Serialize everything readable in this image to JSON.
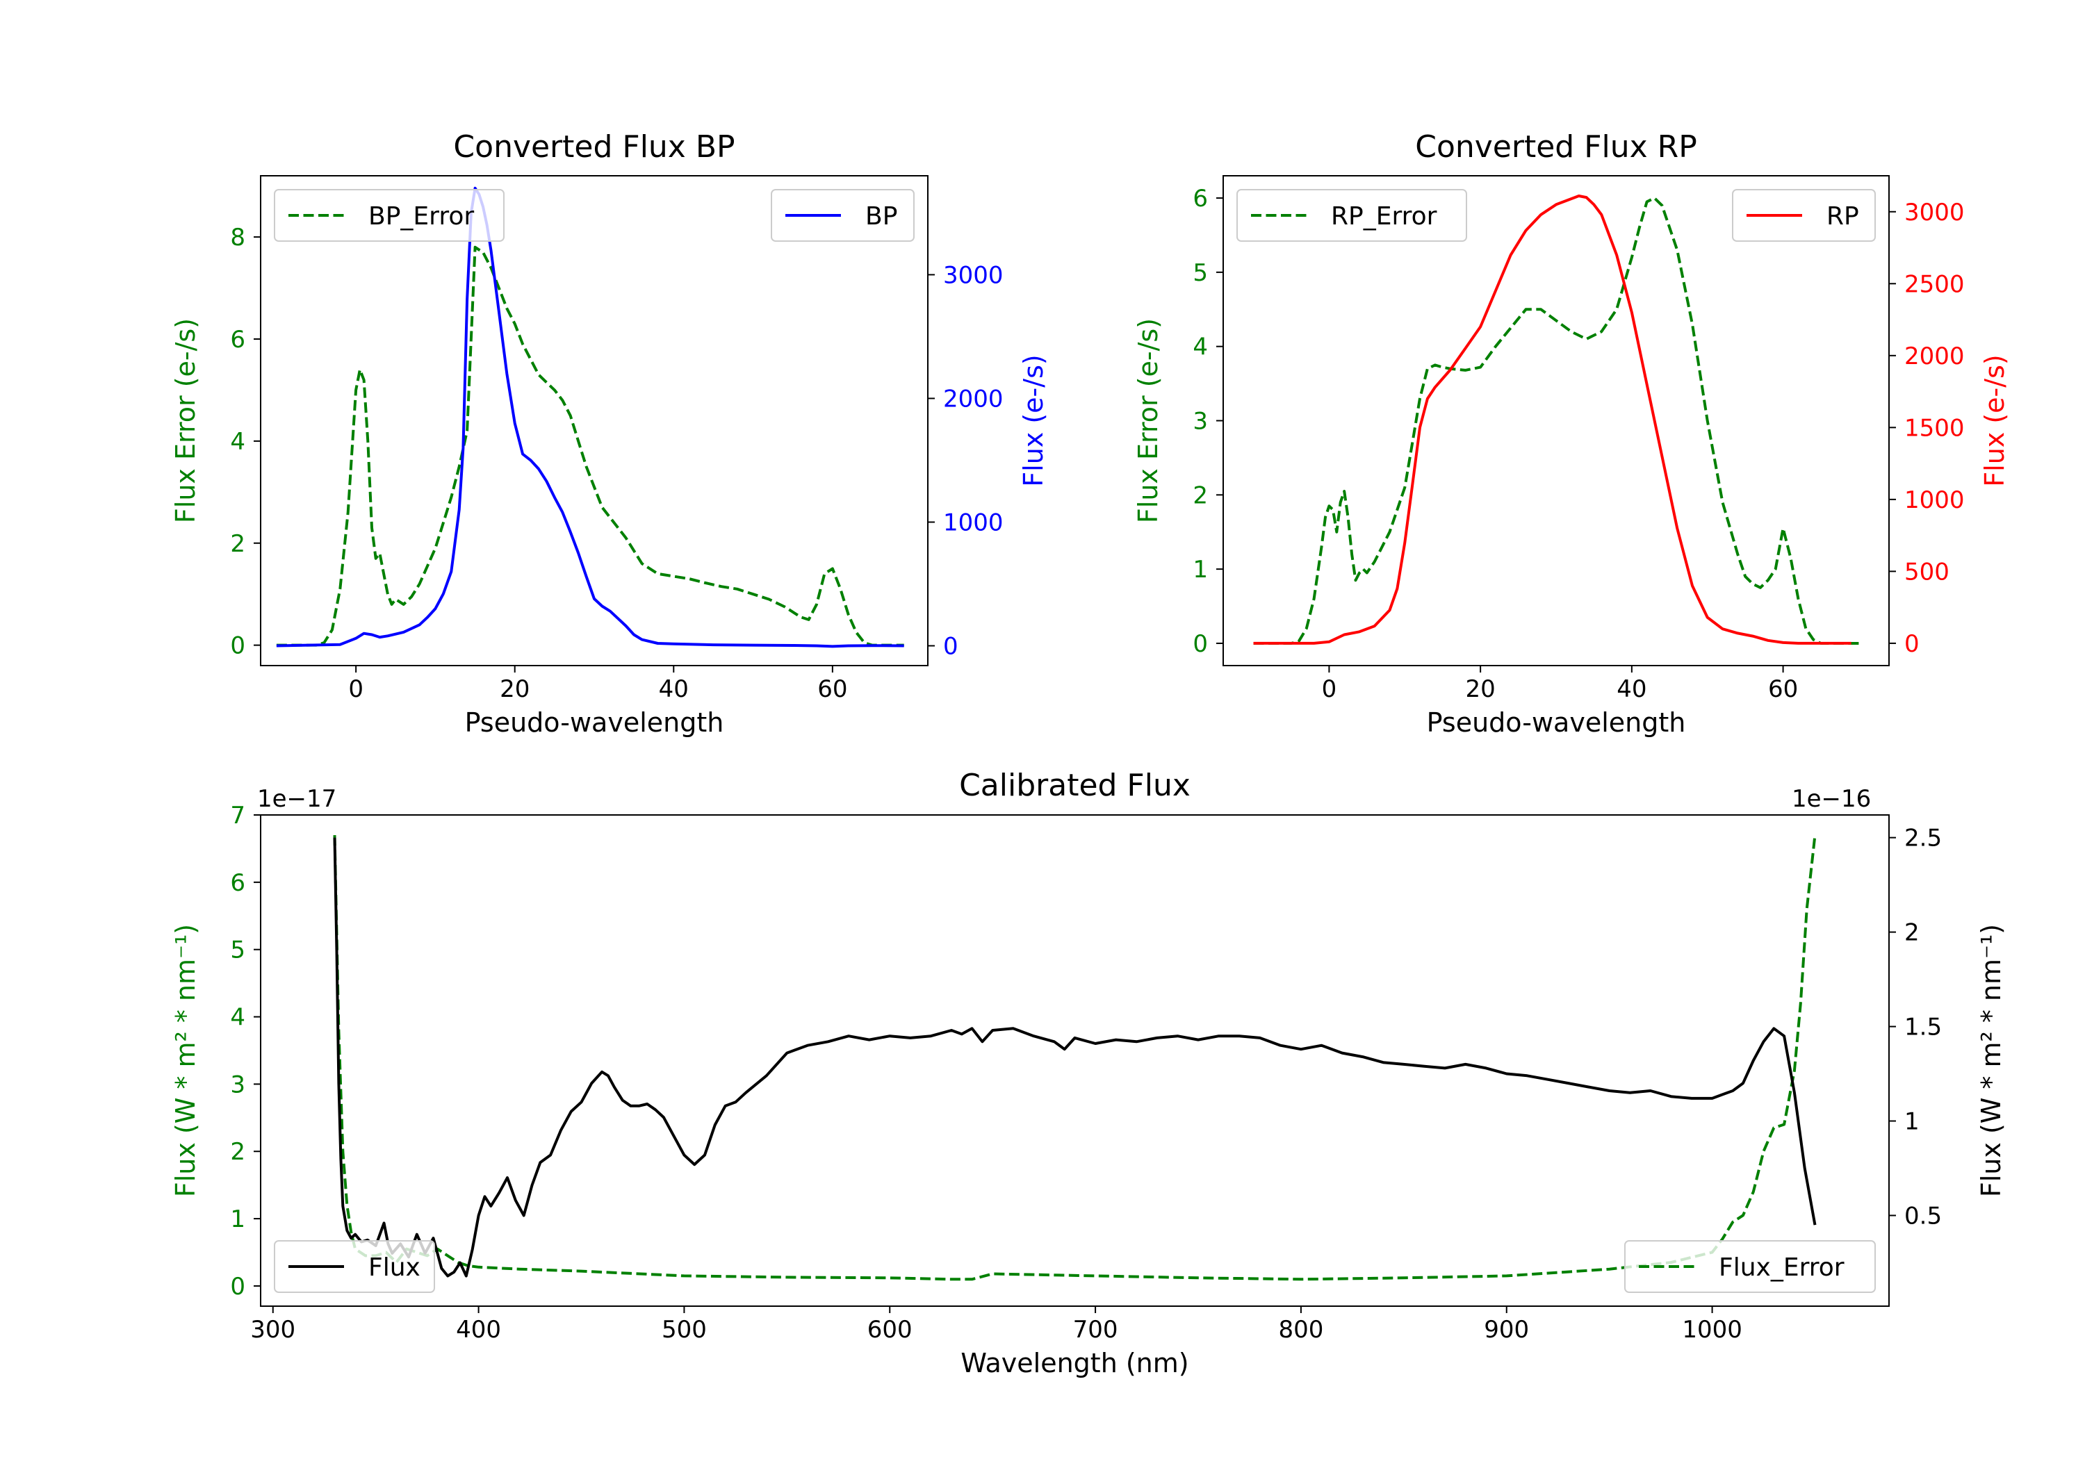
{
  "colors": {
    "error": "#008000",
    "bp": "#0000ff",
    "rp": "#ff0000",
    "flux": "#000000",
    "axis": "#000000"
  },
  "chart_data": [
    {
      "id": "bp",
      "type": "line",
      "title": "Converted Flux BP",
      "xlabel": "Pseudo-wavelength",
      "ylabel_left": "Flux Error (e-/s)",
      "ylabel_right": "Flux (e-/s)",
      "xlim": [
        -12,
        72
      ],
      "ylim_left": [
        -0.4,
        9.2
      ],
      "ylim_right": [
        -160,
        3800
      ],
      "xticks": [
        0,
        20,
        40,
        60
      ],
      "yticks_left": [
        0,
        2,
        4,
        6,
        8
      ],
      "yticks_right": [
        0,
        1000,
        2000,
        3000
      ],
      "legend_left": {
        "label": "BP_Error",
        "placement": "upper left"
      },
      "legend_right": {
        "label": "BP",
        "placement": "upper right"
      },
      "series": [
        {
          "name": "BP_Error",
          "axis": "left",
          "style": "dashed",
          "color_key": "error",
          "x": [
            -10,
            -5,
            -4,
            -3,
            -2,
            -1,
            0,
            0.5,
            1,
            1.5,
            2,
            2.5,
            3,
            3.5,
            4,
            4.5,
            5,
            5.5,
            6,
            7,
            8,
            10,
            11,
            12,
            13,
            14,
            15,
            16,
            17,
            18,
            19,
            20,
            21,
            22,
            23,
            24,
            25,
            26,
            27,
            28,
            29,
            30,
            31,
            32,
            34,
            36,
            38,
            40,
            42,
            44,
            46,
            48,
            50,
            52,
            54,
            56,
            57,
            58,
            59,
            60,
            61,
            62,
            63,
            64,
            65,
            66,
            67,
            68,
            69
          ],
          "y": [
            0,
            0,
            0.05,
            0.3,
            1.1,
            2.6,
            5.0,
            5.4,
            5.2,
            4.0,
            2.3,
            1.7,
            1.8,
            1.4,
            1.0,
            0.8,
            0.9,
            0.85,
            0.8,
            0.95,
            1.2,
            1.9,
            2.4,
            2.9,
            3.5,
            4.2,
            7.8,
            7.7,
            7.4,
            7.0,
            6.6,
            6.3,
            5.9,
            5.6,
            5.3,
            5.15,
            5.0,
            4.8,
            4.5,
            4.0,
            3.5,
            3.1,
            2.7,
            2.5,
            2.1,
            1.6,
            1.4,
            1.35,
            1.3,
            1.22,
            1.15,
            1.1,
            1.0,
            0.9,
            0.75,
            0.55,
            0.5,
            0.8,
            1.4,
            1.5,
            1.1,
            0.6,
            0.25,
            0.05,
            0,
            0,
            0,
            0,
            0
          ]
        },
        {
          "name": "BP",
          "axis": "right",
          "style": "solid",
          "color_key": "bp",
          "x": [
            -10,
            -2,
            0,
            1,
            2,
            3,
            4,
            6,
            8,
            9,
            10,
            11,
            12,
            13,
            13.5,
            14,
            14.5,
            15,
            15.5,
            16,
            16.5,
            17,
            18,
            19,
            20,
            21,
            22,
            23,
            24,
            25,
            26,
            27,
            28,
            29,
            30,
            31,
            32,
            33,
            34,
            35,
            36,
            38,
            40,
            45,
            50,
            55,
            58,
            60,
            62,
            65,
            69
          ],
          "y": [
            0,
            10,
            60,
            100,
            90,
            70,
            80,
            110,
            170,
            230,
            300,
            420,
            600,
            1100,
            1600,
            2800,
            3500,
            3700,
            3650,
            3550,
            3400,
            3200,
            2700,
            2200,
            1800,
            1550,
            1500,
            1430,
            1330,
            1200,
            1080,
            920,
            750,
            560,
            380,
            320,
            280,
            220,
            160,
            90,
            50,
            20,
            15,
            8,
            5,
            3,
            0,
            -5,
            0,
            2,
            0
          ]
        }
      ]
    },
    {
      "id": "rp",
      "type": "line",
      "title": "Converted Flux RP",
      "xlabel": "Pseudo-wavelength",
      "ylabel_left": "Flux Error (e-/s)",
      "ylabel_right": "Flux (e-/s)",
      "xlim": [
        -14,
        74
      ],
      "ylim_left": [
        -0.3,
        6.3
      ],
      "ylim_right": [
        -155,
        3250
      ],
      "xticks": [
        0,
        20,
        40,
        60
      ],
      "yticks_left": [
        0,
        1,
        2,
        3,
        4,
        5,
        6
      ],
      "yticks_right": [
        0,
        500,
        1000,
        1500,
        2000,
        2500,
        3000
      ],
      "legend_left": {
        "label": "RP_Error",
        "placement": "upper left"
      },
      "legend_right": {
        "label": "RP",
        "placement": "upper right"
      },
      "series": [
        {
          "name": "RP_Error",
          "axis": "left",
          "style": "dashed",
          "color_key": "error",
          "x": [
            -10,
            -5,
            -4,
            -3,
            -2,
            -1,
            -0.5,
            0,
            0.5,
            1,
            1.5,
            2,
            2.5,
            3,
            3.5,
            4,
            4.5,
            5,
            6,
            7,
            8,
            9,
            10,
            11,
            12,
            13,
            14,
            15,
            16,
            18,
            20,
            22,
            24,
            26,
            28,
            30,
            32,
            34,
            36,
            38,
            40,
            41,
            42,
            43,
            44,
            46,
            48,
            50,
            52,
            54,
            55,
            56,
            57,
            58,
            59,
            60,
            61,
            62,
            63,
            64,
            65,
            70
          ],
          "y": [
            0,
            0,
            0.03,
            0.2,
            0.6,
            1.3,
            1.7,
            1.85,
            1.8,
            1.5,
            1.9,
            2.05,
            1.7,
            1.2,
            0.85,
            0.95,
            1.0,
            0.95,
            1.1,
            1.3,
            1.5,
            1.8,
            2.1,
            2.7,
            3.3,
            3.7,
            3.75,
            3.72,
            3.7,
            3.68,
            3.72,
            4.0,
            4.25,
            4.5,
            4.5,
            4.35,
            4.2,
            4.1,
            4.2,
            4.5,
            5.2,
            5.6,
            5.95,
            6.0,
            5.9,
            5.3,
            4.3,
            3.0,
            1.9,
            1.2,
            0.9,
            0.8,
            0.75,
            0.85,
            1.0,
            1.55,
            1.15,
            0.6,
            0.2,
            0.05,
            0,
            0
          ]
        },
        {
          "name": "RP",
          "axis": "right",
          "style": "solid",
          "color_key": "rp",
          "x": [
            -10,
            -2,
            0,
            2,
            4,
            6,
            8,
            9,
            10,
            11,
            12,
            13,
            14,
            16,
            18,
            20,
            22,
            24,
            26,
            28,
            30,
            32,
            33,
            34,
            35,
            36,
            38,
            40,
            42,
            44,
            46,
            48,
            50,
            52,
            54,
            56,
            58,
            60,
            62,
            64,
            69
          ],
          "y": [
            0,
            0,
            10,
            60,
            80,
            120,
            230,
            380,
            700,
            1100,
            1500,
            1700,
            1780,
            1900,
            2050,
            2200,
            2450,
            2700,
            2870,
            2980,
            3050,
            3090,
            3110,
            3100,
            3050,
            2980,
            2700,
            2300,
            1800,
            1300,
            800,
            400,
            180,
            100,
            70,
            50,
            20,
            5,
            0,
            0,
            0
          ]
        }
      ]
    },
    {
      "id": "calibrated",
      "type": "line",
      "title": "Calibrated Flux",
      "xlabel": "Wavelength (nm)",
      "ylabel_left": "Flux (W * m² * nm⁻¹)",
      "ylabel_right": "Flux (W * m² * nm⁻¹)",
      "offset_left": "1e−17",
      "offset_right": "1e−16",
      "xlim": [
        294,
        1086
      ],
      "ylim_left": [
        -0.3,
        7.0
      ],
      "ylim_right": [
        0.02,
        2.62
      ],
      "xticks": [
        300,
        400,
        500,
        600,
        700,
        800,
        900,
        1000
      ],
      "yticks_left": [
        0,
        1,
        2,
        3,
        4,
        5,
        6,
        7
      ],
      "yticks_right": [
        0.5,
        1.0,
        1.5,
        2.0,
        2.5
      ],
      "legend_left": {
        "label": "Flux",
        "placement": "lower left"
      },
      "legend_right": {
        "label": "Flux_Error",
        "placement": "lower right"
      },
      "series": [
        {
          "name": "Flux_Error",
          "axis": "left",
          "style": "dashed",
          "color_key": "error",
          "x": [
            330,
            332,
            334,
            336,
            338,
            340,
            345,
            350,
            355,
            360,
            365,
            370,
            375,
            380,
            385,
            390,
            395,
            400,
            420,
            450,
            500,
            550,
            600,
            630,
            640,
            650,
            700,
            750,
            800,
            850,
            900,
            950,
            980,
            1000,
            1005,
            1010,
            1015,
            1020,
            1025,
            1030,
            1035,
            1040,
            1043,
            1046,
            1050
          ],
          "y": [
            6.7,
            3.8,
            2.0,
            1.2,
            0.8,
            0.55,
            0.45,
            0.45,
            0.5,
            0.35,
            0.55,
            0.5,
            0.45,
            0.55,
            0.45,
            0.35,
            0.3,
            0.28,
            0.25,
            0.22,
            0.15,
            0.13,
            0.12,
            0.1,
            0.1,
            0.18,
            0.15,
            0.12,
            0.1,
            0.12,
            0.15,
            0.25,
            0.35,
            0.5,
            0.7,
            0.95,
            1.05,
            1.4,
            2.0,
            2.35,
            2.4,
            3.2,
            4.2,
            5.6,
            6.7
          ]
        },
        {
          "name": "Flux",
          "axis": "right",
          "style": "solid",
          "color_key": "flux",
          "x": [
            330,
            331,
            332,
            333,
            334,
            336,
            338,
            340,
            343,
            346,
            350,
            352,
            354,
            356,
            358,
            362,
            366,
            370,
            374,
            378,
            382,
            385,
            388,
            391,
            394,
            397,
            400,
            403,
            406,
            410,
            414,
            418,
            422,
            426,
            430,
            435,
            440,
            445,
            450,
            455,
            460,
            463,
            466,
            470,
            474,
            478,
            482,
            486,
            490,
            495,
            500,
            505,
            510,
            515,
            520,
            525,
            530,
            540,
            550,
            560,
            570,
            580,
            590,
            600,
            610,
            620,
            630,
            635,
            640,
            645,
            650,
            660,
            670,
            680,
            685,
            690,
            700,
            710,
            720,
            730,
            740,
            750,
            760,
            770,
            780,
            790,
            800,
            810,
            820,
            830,
            840,
            850,
            860,
            870,
            880,
            890,
            900,
            910,
            920,
            930,
            940,
            950,
            960,
            970,
            980,
            990,
            1000,
            1005,
            1010,
            1015,
            1020,
            1025,
            1030,
            1035,
            1040,
            1045,
            1050
          ],
          "y": [
            2.5,
            1.9,
            1.2,
            0.8,
            0.55,
            0.42,
            0.38,
            0.4,
            0.36,
            0.37,
            0.34,
            0.4,
            0.46,
            0.35,
            0.3,
            0.35,
            0.28,
            0.4,
            0.3,
            0.38,
            0.22,
            0.18,
            0.2,
            0.25,
            0.18,
            0.32,
            0.5,
            0.6,
            0.55,
            0.62,
            0.7,
            0.58,
            0.5,
            0.66,
            0.78,
            0.82,
            0.95,
            1.05,
            1.1,
            1.2,
            1.26,
            1.24,
            1.18,
            1.11,
            1.08,
            1.08,
            1.09,
            1.06,
            1.02,
            0.92,
            0.82,
            0.77,
            0.82,
            0.98,
            1.08,
            1.1,
            1.15,
            1.24,
            1.36,
            1.4,
            1.42,
            1.45,
            1.43,
            1.45,
            1.44,
            1.45,
            1.48,
            1.46,
            1.49,
            1.42,
            1.48,
            1.49,
            1.45,
            1.42,
            1.38,
            1.44,
            1.41,
            1.43,
            1.42,
            1.44,
            1.45,
            1.43,
            1.45,
            1.45,
            1.44,
            1.4,
            1.38,
            1.4,
            1.36,
            1.34,
            1.31,
            1.3,
            1.29,
            1.28,
            1.3,
            1.28,
            1.25,
            1.24,
            1.22,
            1.2,
            1.18,
            1.16,
            1.15,
            1.16,
            1.13,
            1.12,
            1.12,
            1.14,
            1.16,
            1.2,
            1.32,
            1.42,
            1.49,
            1.45,
            1.15,
            0.75,
            0.45
          ]
        }
      ]
    }
  ]
}
